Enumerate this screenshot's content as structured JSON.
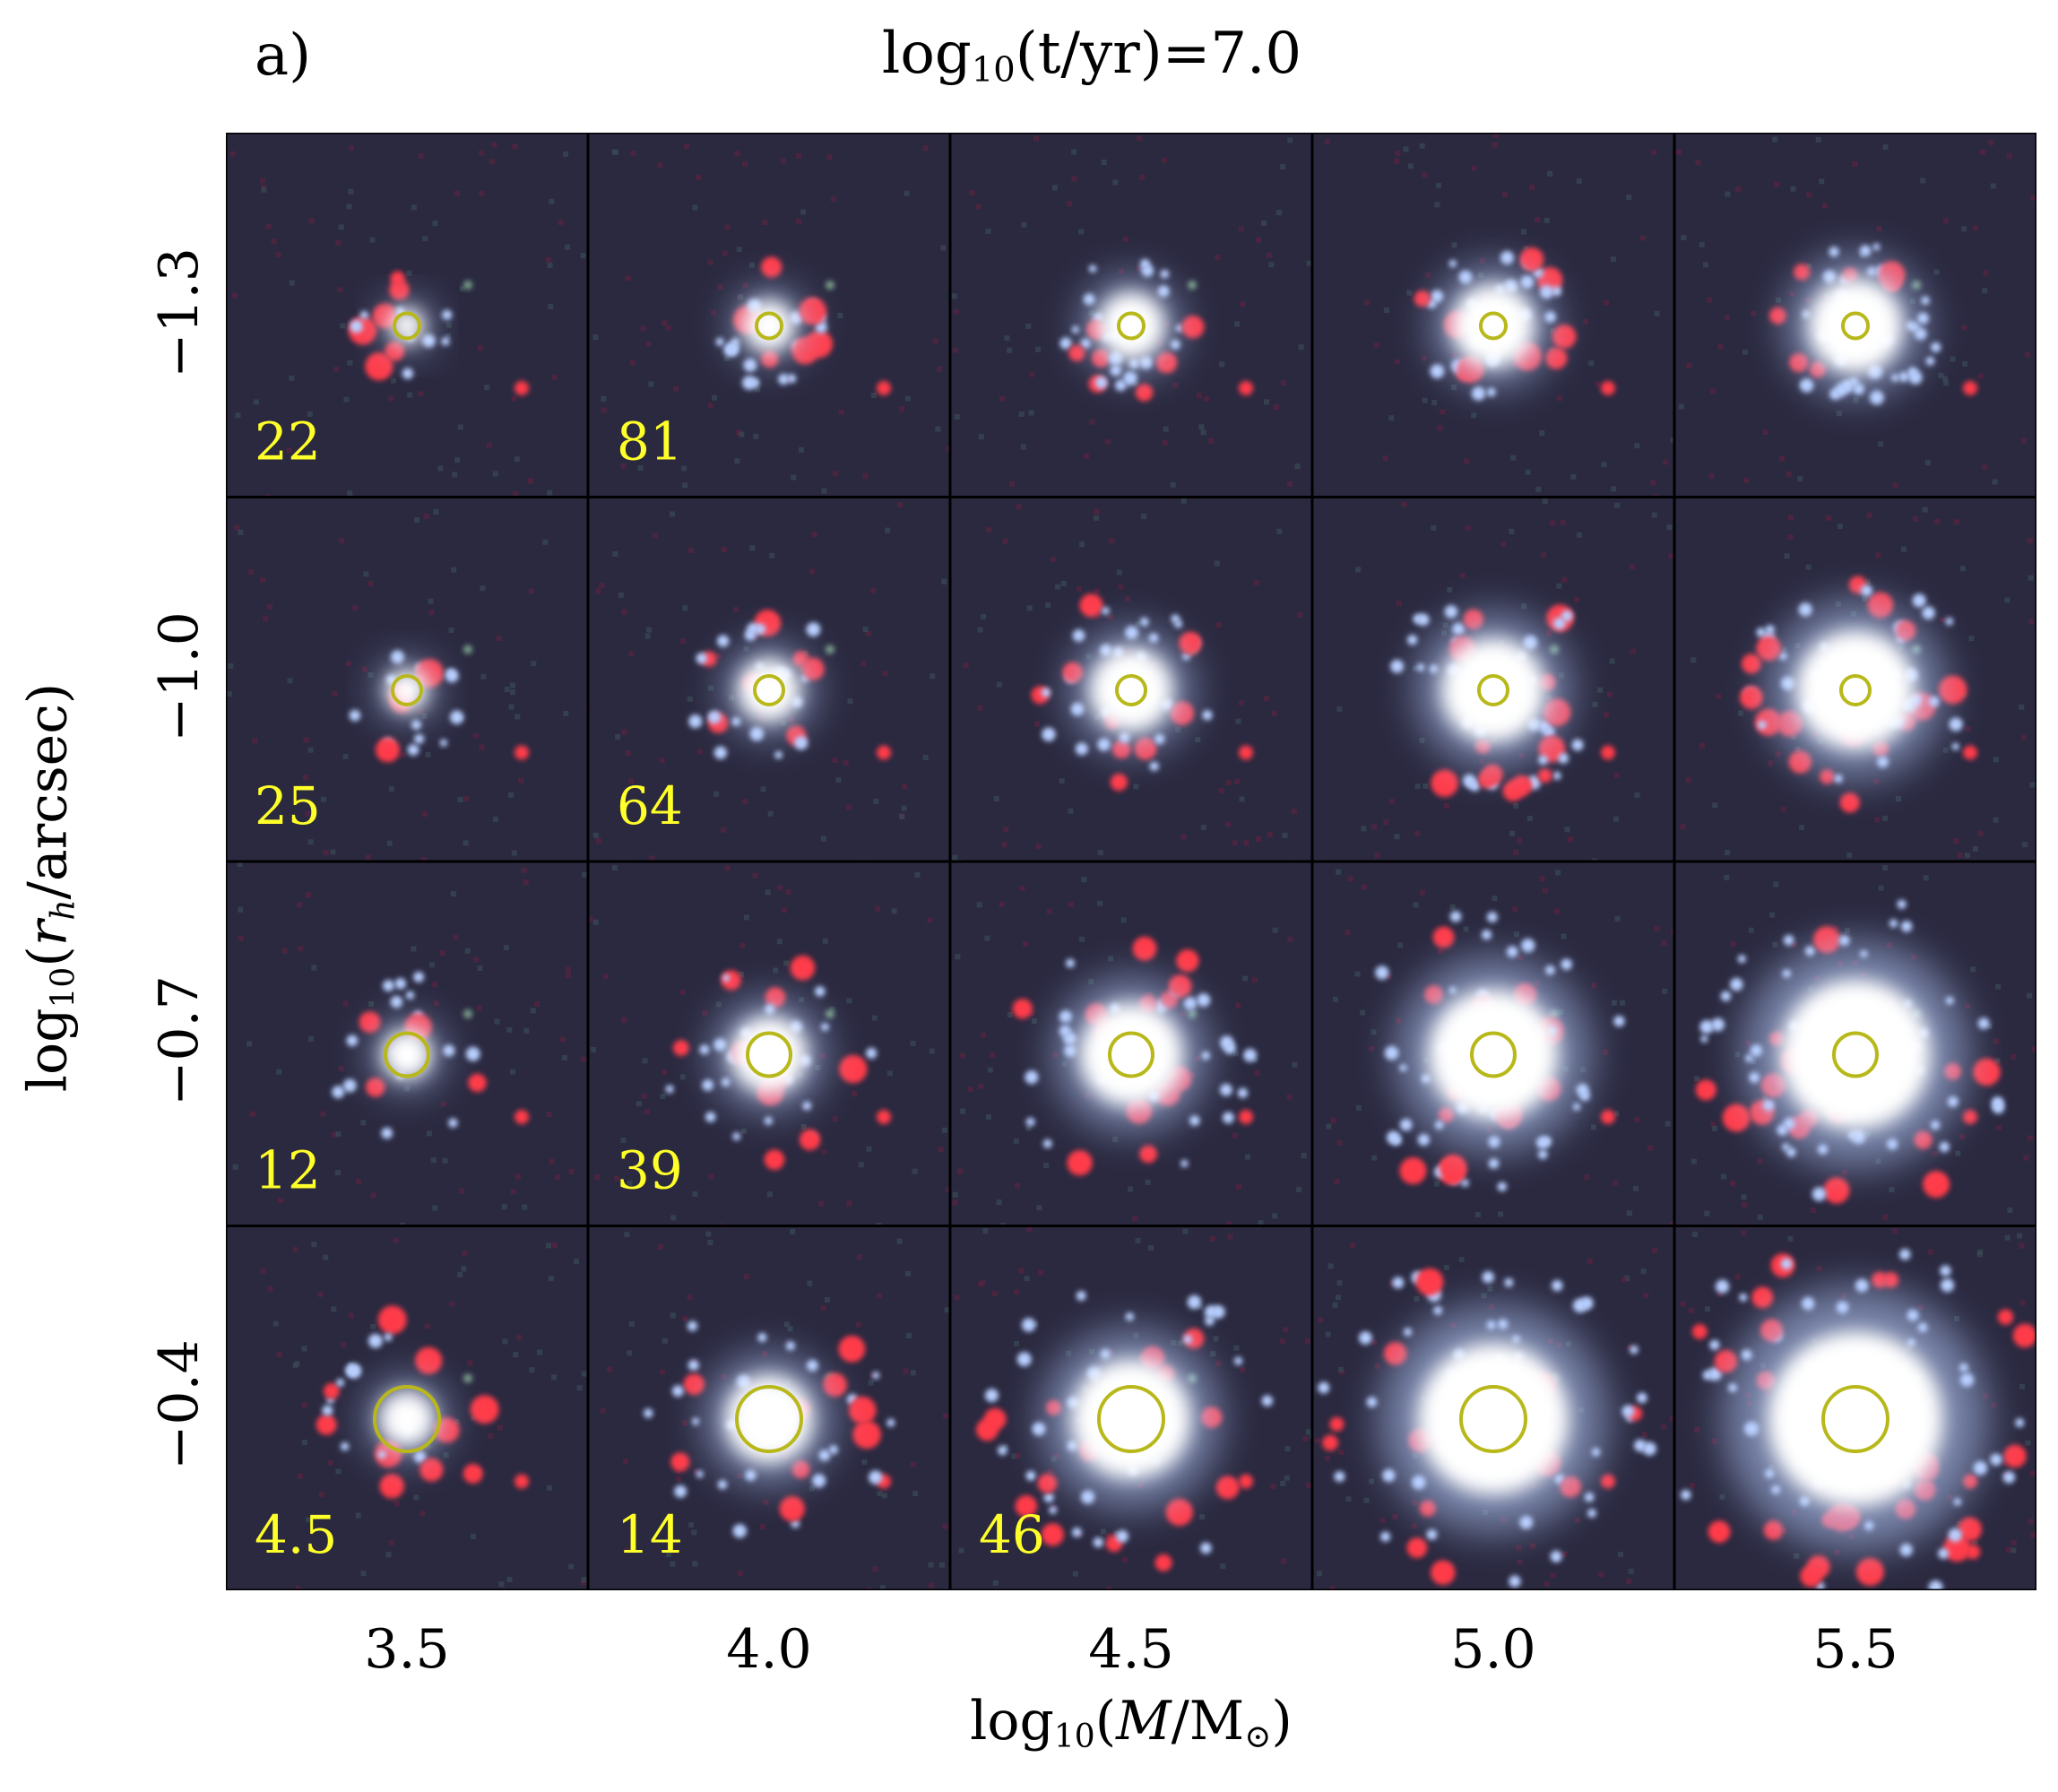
{
  "panel_label": "a)",
  "title": {
    "prefix": "log",
    "sub": "10",
    "body": "(t/yr)=7.0"
  },
  "y_axis": {
    "prefix": "log",
    "sub": "10",
    "open": "(",
    "var": "r",
    "var_sub": "h",
    "rest": "/arcsec)"
  },
  "x_axis": {
    "prefix": "log",
    "sub": "10",
    "open": "(",
    "var": "M",
    "rest": "/M",
    "sun": "⊙",
    "close": ")"
  },
  "rows": [
    "−1.3",
    "−1.0",
    "−0.7",
    "−0.4"
  ],
  "columns": [
    "3.5",
    "4.0",
    "4.5",
    "5.0",
    "5.5"
  ],
  "colors": {
    "background": "#2a2940",
    "star_red": "#ff3a4a",
    "star_blue": "#b8cfff",
    "core": "#ffffff",
    "circle": "#b8b81a",
    "number": "#ffff2a"
  },
  "cells": [
    [
      {
        "n": "22"
      },
      {
        "n": "81"
      },
      {
        "n": ""
      },
      {
        "n": ""
      },
      {
        "n": ""
      }
    ],
    [
      {
        "n": "25"
      },
      {
        "n": "64"
      },
      {
        "n": ""
      },
      {
        "n": ""
      },
      {
        "n": ""
      }
    ],
    [
      {
        "n": "12"
      },
      {
        "n": "39"
      },
      {
        "n": ""
      },
      {
        "n": ""
      },
      {
        "n": ""
      }
    ],
    [
      {
        "n": "4.5"
      },
      {
        "n": "14"
      },
      {
        "n": "46"
      },
      {
        "n": ""
      },
      {
        "n": ""
      }
    ]
  ]
}
